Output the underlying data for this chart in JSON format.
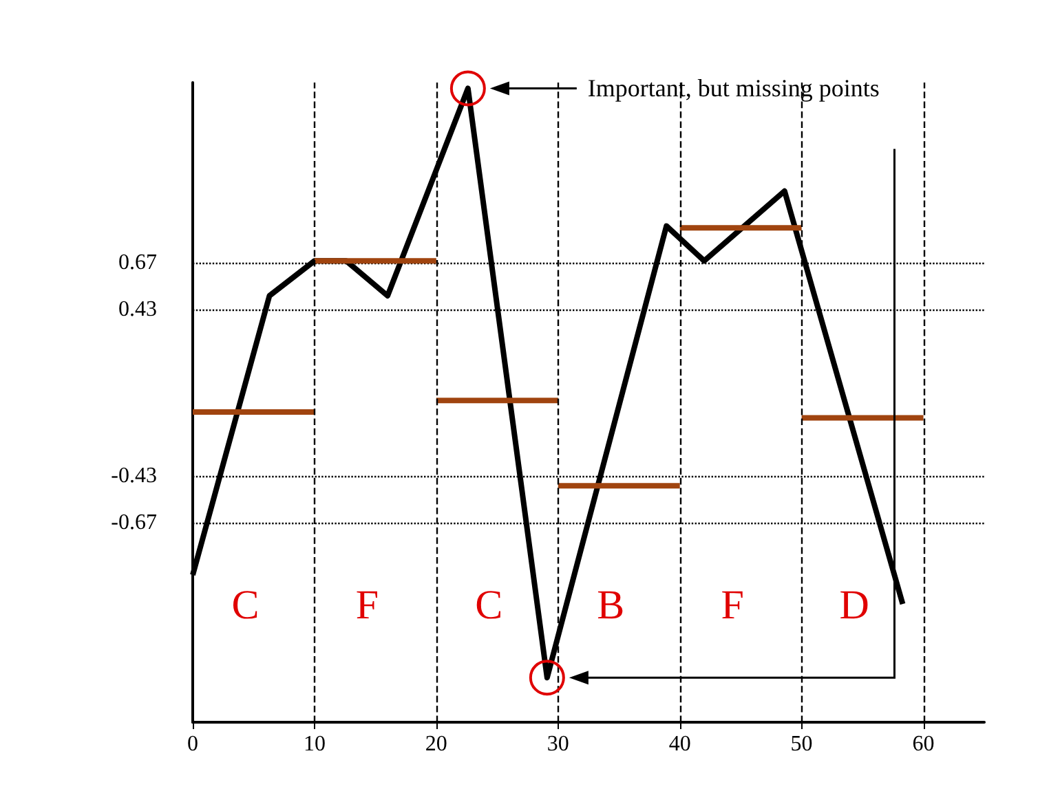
{
  "chart_data": {
    "type": "line",
    "xlim": [
      0,
      65
    ],
    "xticks": [
      0,
      10,
      20,
      30,
      40,
      50,
      60
    ],
    "ylim": [
      -1.7,
      1.6
    ],
    "yticks": [
      -0.67,
      -0.43,
      0.43,
      0.67
    ],
    "grid": "y",
    "tick_labels": "xy",
    "series": [
      {
        "color": "#000000",
        "x": [
          0,
          6.3,
          10,
          12.6,
          16,
          22.6,
          29.1,
          38.9,
          42,
          48.6,
          58.3
        ],
        "values": [
          -0.94,
          0.5,
          0.68,
          0.68,
          0.5,
          1.57,
          -1.47,
          0.86,
          0.68,
          1.04,
          -1.09
        ]
      },
      {
        "color": "#a0440f",
        "x": [
          0,
          10
        ],
        "values": [
          -0.1,
          -0.1
        ]
      },
      {
        "color": "#a0440f",
        "x": [
          10,
          20
        ],
        "values": [
          0.68,
          0.68
        ]
      },
      {
        "color": "#a0440f",
        "x": [
          20,
          30
        ],
        "values": [
          -0.04,
          -0.04
        ]
      },
      {
        "color": "#a0440f",
        "x": [
          30,
          40
        ],
        "values": [
          -0.48,
          -0.48
        ]
      },
      {
        "color": "#a0440f",
        "x": [
          40,
          50
        ],
        "values": [
          0.85,
          0.85
        ]
      },
      {
        "color": "#a0440f",
        "x": [
          50,
          60
        ],
        "values": [
          -0.13,
          -0.13
        ]
      }
    ],
    "ref_lines": [
      {
        "axis": "x",
        "value": 10,
        "line_style": "dashed",
        "color": "#000000"
      },
      {
        "axis": "x",
        "value": 20,
        "line_style": "dashed",
        "color": "#000000"
      },
      {
        "axis": "x",
        "value": 30,
        "line_style": "dashed",
        "color": "#000000"
      },
      {
        "axis": "x",
        "value": 40,
        "line_style": "dashed",
        "color": "#000000"
      },
      {
        "axis": "x",
        "value": 50,
        "line_style": "dashed",
        "color": "#000000"
      },
      {
        "axis": "x",
        "value": 60,
        "line_style": "dashed",
        "color": "#000000"
      }
    ],
    "annotations": [
      "Important, but missing points",
      "C",
      "F",
      "C",
      "B",
      "F",
      "D"
    ]
  }
}
